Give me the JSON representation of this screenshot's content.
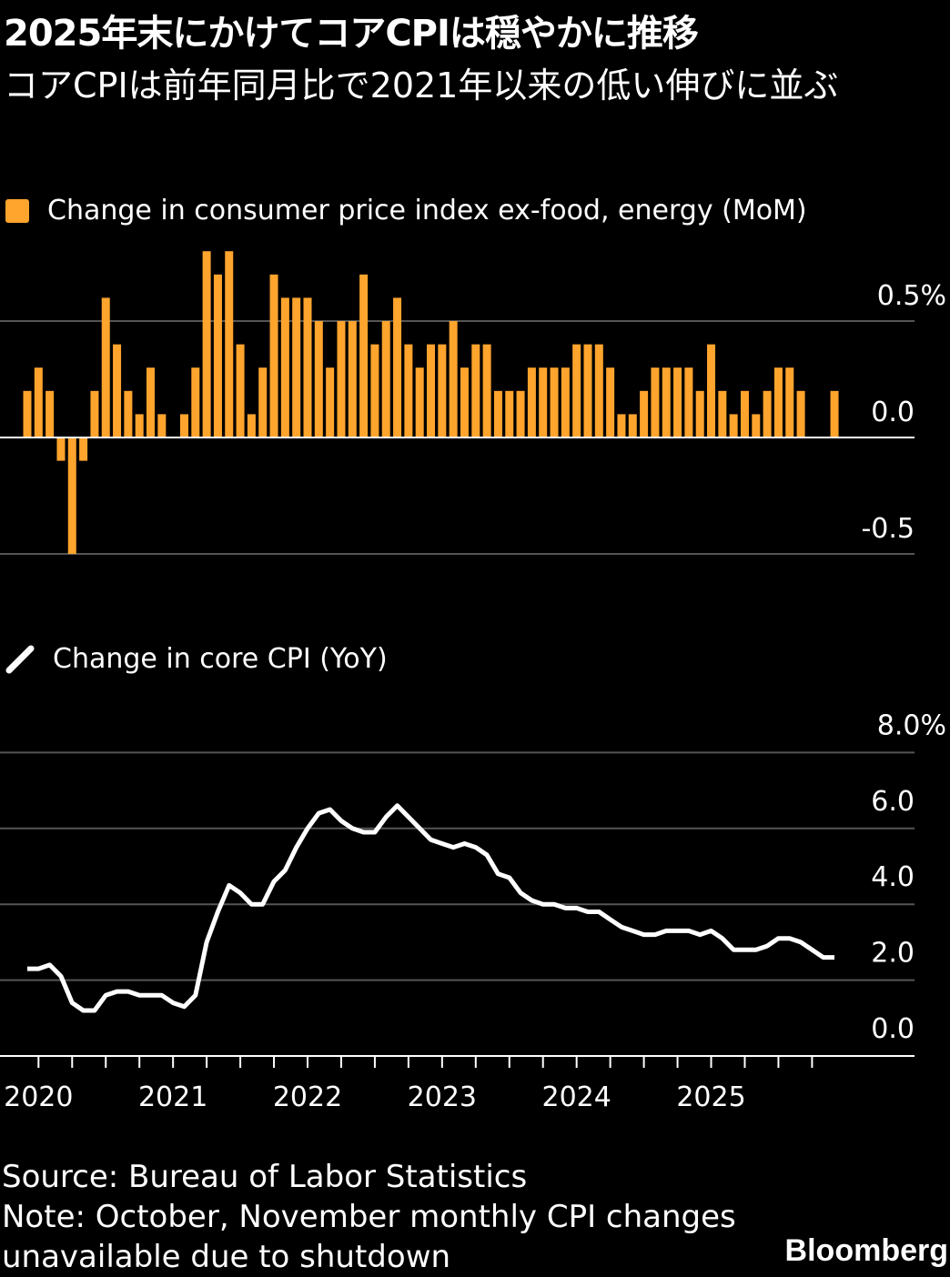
{
  "header": {
    "title": "2025年末にかけてコアCPIは穏やかに推移",
    "subtitle": "コアCPIは前年同月比で2021年以来の低い伸びに並ぶ"
  },
  "colors": {
    "bar": "#ffa42d",
    "line": "#ffffff",
    "background": "#000000",
    "grid": "#555555"
  },
  "chart_data": [
    {
      "type": "bar",
      "legend": "Change in consumer price index ex-food, energy (MoM)",
      "legend_icon": "orange-square",
      "y_ticks": [
        "0.5%",
        "0.0",
        "-0.5"
      ],
      "y_tick_values": [
        0.5,
        0.0,
        -0.5
      ],
      "ylim": [
        -0.5,
        0.8
      ],
      "grid": true,
      "x_start": "2019-12",
      "x_end": "2025-12",
      "values": [
        0.2,
        0.3,
        0.2,
        -0.1,
        -0.5,
        -0.1,
        0.2,
        0.6,
        0.4,
        0.2,
        0.1,
        0.3,
        0.1,
        0.0,
        0.1,
        0.3,
        0.8,
        0.7,
        0.8,
        0.4,
        0.1,
        0.3,
        0.7,
        0.6,
        0.6,
        0.6,
        0.5,
        0.3,
        0.5,
        0.5,
        0.7,
        0.4,
        0.5,
        0.6,
        0.4,
        0.3,
        0.4,
        0.4,
        0.5,
        0.3,
        0.4,
        0.4,
        0.2,
        0.2,
        0.2,
        0.3,
        0.3,
        0.3,
        0.3,
        0.4,
        0.4,
        0.4,
        0.3,
        0.1,
        0.1,
        0.2,
        0.3,
        0.3,
        0.3,
        0.3,
        0.2,
        0.4,
        0.2,
        0.1,
        0.2,
        0.1,
        0.2,
        0.3,
        0.3,
        0.2,
        null,
        null,
        0.2
      ]
    },
    {
      "type": "line",
      "legend": "Change in core CPI (YoY)",
      "legend_icon": "white-line",
      "y_ticks": [
        "8.0%",
        "6.0",
        "4.0",
        "2.0",
        "0.0"
      ],
      "y_tick_values": [
        8,
        6,
        4,
        2,
        0
      ],
      "ylim": [
        0,
        8
      ],
      "grid": true,
      "x_start": "2019-12",
      "x_end": "2025-12",
      "x_tick_labels": [
        "2020",
        "2021",
        "2022",
        "2023",
        "2024",
        "2025"
      ],
      "values": [
        2.3,
        2.3,
        2.4,
        2.1,
        1.4,
        1.2,
        1.2,
        1.6,
        1.7,
        1.7,
        1.6,
        1.6,
        1.6,
        1.4,
        1.3,
        1.6,
        3.0,
        3.8,
        4.5,
        4.3,
        4.0,
        4.0,
        4.6,
        4.9,
        5.5,
        6.0,
        6.4,
        6.5,
        6.2,
        6.0,
        5.9,
        5.9,
        6.3,
        6.6,
        6.3,
        6.0,
        5.7,
        5.6,
        5.5,
        5.6,
        5.5,
        5.3,
        4.8,
        4.7,
        4.3,
        4.1,
        4.0,
        4.0,
        3.9,
        3.9,
        3.8,
        3.8,
        3.6,
        3.4,
        3.3,
        3.2,
        3.2,
        3.3,
        3.3,
        3.3,
        3.2,
        3.3,
        3.1,
        2.8,
        2.8,
        2.8,
        2.9,
        3.1,
        3.1,
        3.0,
        null,
        2.6,
        2.6
      ]
    }
  ],
  "footer": {
    "source": "Source: Bureau of Labor Statistics",
    "note": "Note: October, November monthly CPI changes unavailable due to shutdown",
    "brand": "Bloomberg"
  }
}
